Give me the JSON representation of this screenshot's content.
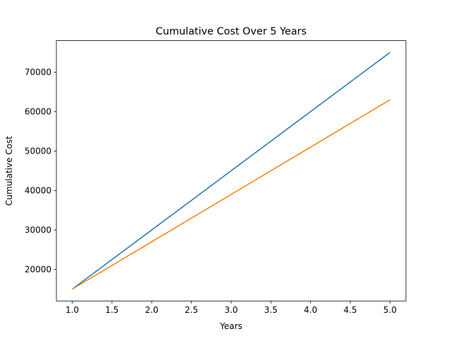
{
  "chart_data": {
    "type": "line",
    "title": "Cumulative Cost Over 5 Years",
    "xlabel": "Years",
    "ylabel": "Cumulative Cost",
    "xlim": [
      0.8,
      5.2
    ],
    "ylim": [
      12000,
      78000
    ],
    "xticks": [
      1.0,
      1.5,
      2.0,
      2.5,
      3.0,
      3.5,
      4.0,
      4.5,
      5.0
    ],
    "xtick_labels": [
      "1.0",
      "1.5",
      "2.0",
      "2.5",
      "3.0",
      "3.5",
      "4.0",
      "4.5",
      "5.0"
    ],
    "yticks": [
      20000,
      30000,
      40000,
      50000,
      60000,
      70000
    ],
    "ytick_labels": [
      "20000",
      "30000",
      "40000",
      "50000",
      "60000",
      "70000"
    ],
    "grid": false,
    "x": [
      1,
      2,
      3,
      4,
      5
    ],
    "series": [
      {
        "values": [
          15000,
          30000,
          45000,
          60000,
          75000
        ],
        "color": "#1f77b4"
      },
      {
        "values": [
          15000,
          27000,
          39000,
          51000,
          63000
        ],
        "color": "#ff7f0e"
      }
    ]
  }
}
